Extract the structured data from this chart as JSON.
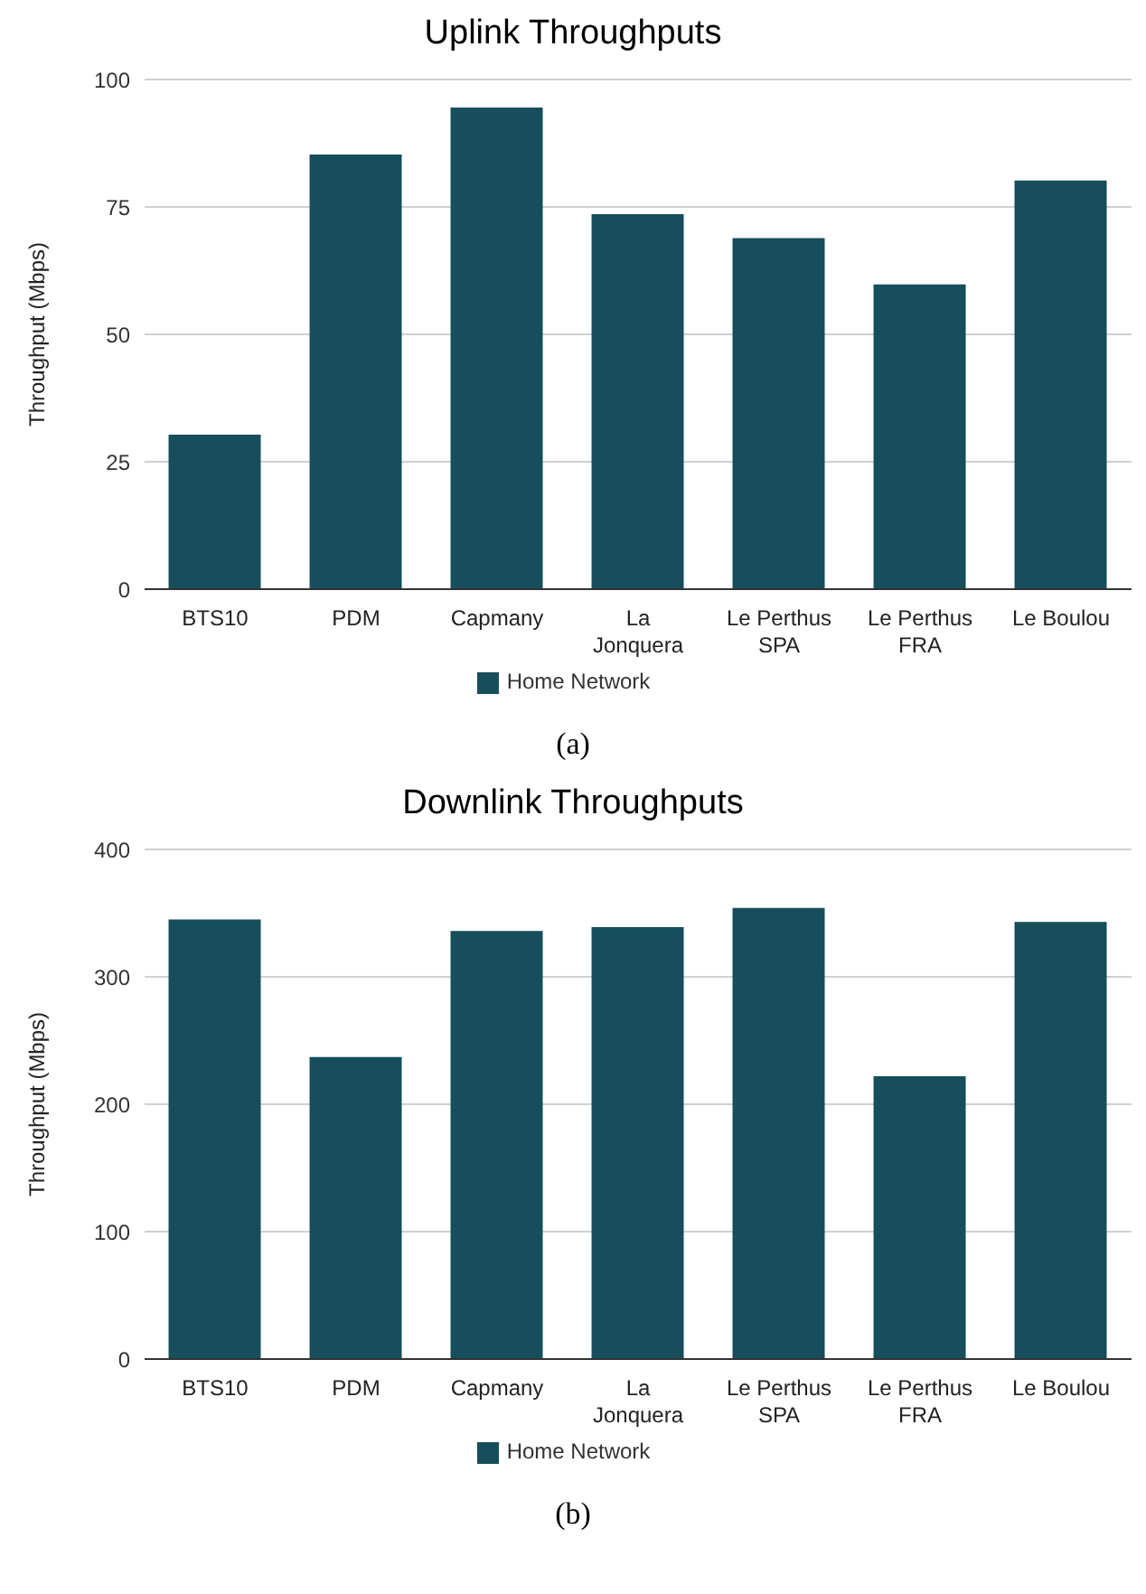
{
  "chart_data": [
    {
      "type": "bar",
      "title": "Uplink Throughputs",
      "ylabel": "Throughput (Mbps)",
      "categories": [
        "BTS10",
        "PDM",
        "Capmany",
        "La Jonquera",
        "Le Perthus SPA",
        "Le Perthus FRA",
        "Le Boulou"
      ],
      "series": [
        {
          "name": "Home Network",
          "color": "#164e5b",
          "values": [
            30.3,
            85.3,
            94.5,
            73.6,
            68.9,
            59.8,
            80.2
          ]
        }
      ],
      "ylim": [
        0,
        100
      ],
      "yticks": [
        0,
        25,
        50,
        75,
        100
      ],
      "grid": "y",
      "legend": "bottom",
      "annotations": [
        "(a)"
      ]
    },
    {
      "type": "bar",
      "title": "Downlink Throughputs",
      "ylabel": "Throughput (Mbps)",
      "categories": [
        "BTS10",
        "PDM",
        "Capmany",
        "La Jonquera",
        "Le Perthus SPA",
        "Le Perthus FRA",
        "Le Boulou"
      ],
      "series": [
        {
          "name": "Home Network",
          "color": "#164e5b",
          "values": [
            345,
            237,
            336,
            339,
            354,
            222,
            343
          ]
        }
      ],
      "ylim": [
        0,
        400
      ],
      "yticks": [
        0,
        100,
        200,
        300,
        400
      ],
      "grid": "y",
      "legend": "bottom",
      "annotations": [
        "(b)"
      ]
    }
  ]
}
